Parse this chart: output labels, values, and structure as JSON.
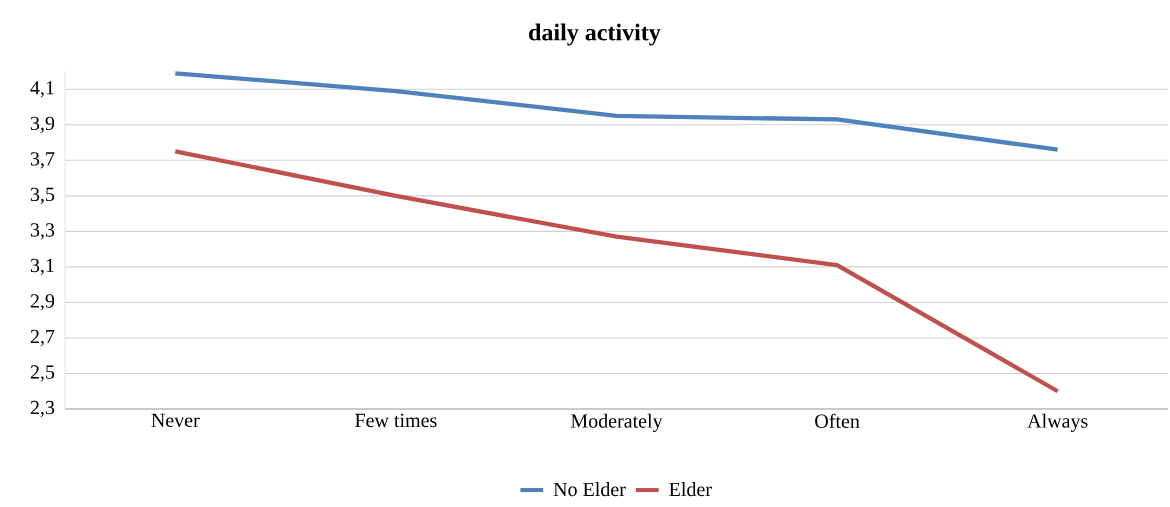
{
  "chart_data": {
    "type": "line",
    "title": "daily activity",
    "categories": [
      "Never",
      "Few times",
      "Moderately",
      "Often",
      "Always"
    ],
    "series": [
      {
        "name": "No Elder",
        "color": "#4f81bd",
        "values": [
          4.19,
          4.09,
          3.95,
          3.93,
          3.76
        ]
      },
      {
        "name": "Elder",
        "color": "#c0504d",
        "values": [
          3.75,
          3.5,
          3.27,
          3.11,
          2.4
        ]
      }
    ],
    "ylim": [
      2.3,
      4.2
    ],
    "yticks": [
      {
        "value": 2.3,
        "label": "2,3"
      },
      {
        "value": 2.5,
        "label": "2,5"
      },
      {
        "value": 2.7,
        "label": "2,7"
      },
      {
        "value": 2.9,
        "label": "2,9"
      },
      {
        "value": 3.1,
        "label": "3,1"
      },
      {
        "value": 3.3,
        "label": "3,3"
      },
      {
        "value": 3.5,
        "label": "3,5"
      },
      {
        "value": 3.7,
        "label": "3,7"
      },
      {
        "value": 3.9,
        "label": "3,9"
      },
      {
        "value": 4.1,
        "label": "4,1"
      }
    ],
    "grid": "y",
    "legend": "bottom",
    "marker": "none",
    "line_style": "solid"
  }
}
